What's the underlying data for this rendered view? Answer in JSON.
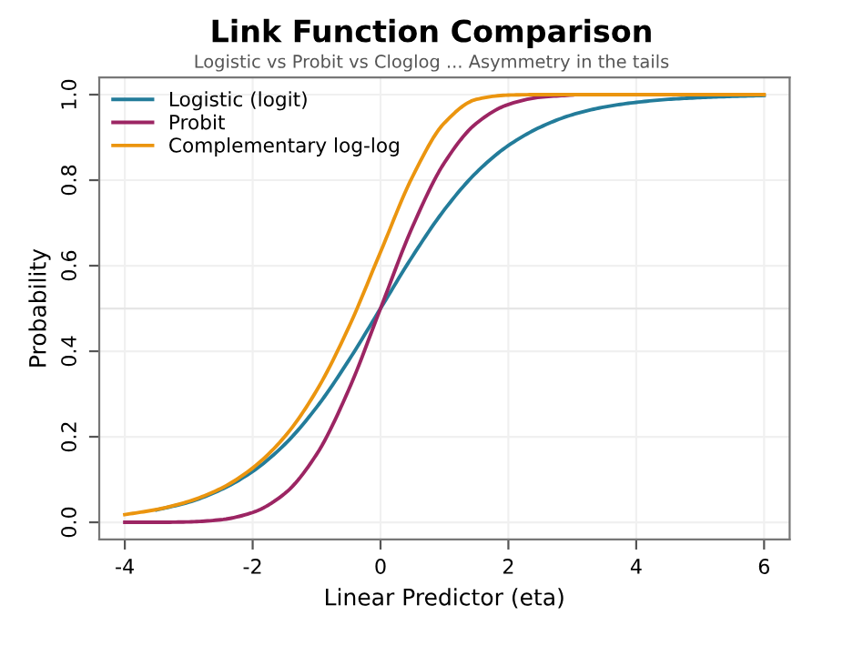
{
  "chart_data": {
    "type": "line",
    "title": "Link Function Comparison",
    "subtitle": "Logistic vs Probit vs Cloglog ... Asymmetry in the tails",
    "xlabel": "Linear Predictor (eta)",
    "ylabel": "Probability",
    "x": [
      -4,
      -3.5,
      -3,
      -2.5,
      -2,
      -1.5,
      -1,
      -0.5,
      0,
      0.5,
      1,
      1.5,
      2,
      2.5,
      3,
      3.5,
      4,
      4.5,
      5,
      5.5,
      6
    ],
    "series": [
      {
        "name": "Logistic (logit)",
        "color": "#237c9a",
        "values": [
          null,
          0.029,
          0.047,
          0.076,
          0.119,
          0.182,
          0.269,
          0.378,
          0.5,
          0.622,
          0.731,
          0.818,
          0.881,
          0.924,
          0.953,
          0.971,
          0.982,
          0.989,
          0.993,
          0.996,
          0.998
        ]
      },
      {
        "name": "Probit",
        "color": "#9c2563",
        "values": [
          0.0,
          0.0,
          0.001,
          0.006,
          0.023,
          0.067,
          0.159,
          0.309,
          0.5,
          0.691,
          0.841,
          0.933,
          0.977,
          0.994,
          0.999,
          null,
          null,
          null,
          null,
          null,
          null
        ]
      },
      {
        "name": "Complementary log-log",
        "color": "#eb950f",
        "values": [
          0.018,
          0.03,
          0.049,
          0.079,
          0.127,
          0.2,
          0.308,
          0.455,
          0.632,
          0.808,
          0.934,
          0.989,
          0.999,
          1.0,
          1.0,
          1.0,
          1.0,
          1.0,
          1.0,
          1.0,
          1.0
        ]
      }
    ],
    "xlim": [
      -4.4,
      6.4
    ],
    "ylim": [
      -0.04,
      1.04
    ],
    "xticks": [
      -4,
      -2,
      0,
      2,
      4,
      6
    ],
    "yticks": [
      {
        "value": 0,
        "label": "0.0"
      },
      0.2,
      0.4,
      0.6,
      0.8,
      {
        "value": 1,
        "label": "1.0"
      }
    ],
    "ref_lines": [
      {
        "axis": "y",
        "value": 0.5,
        "color": "#e6e6e6",
        "line_style": "solid"
      }
    ],
    "grid": true,
    "legend": "top left",
    "marker": "none",
    "line_style": "solid"
  }
}
